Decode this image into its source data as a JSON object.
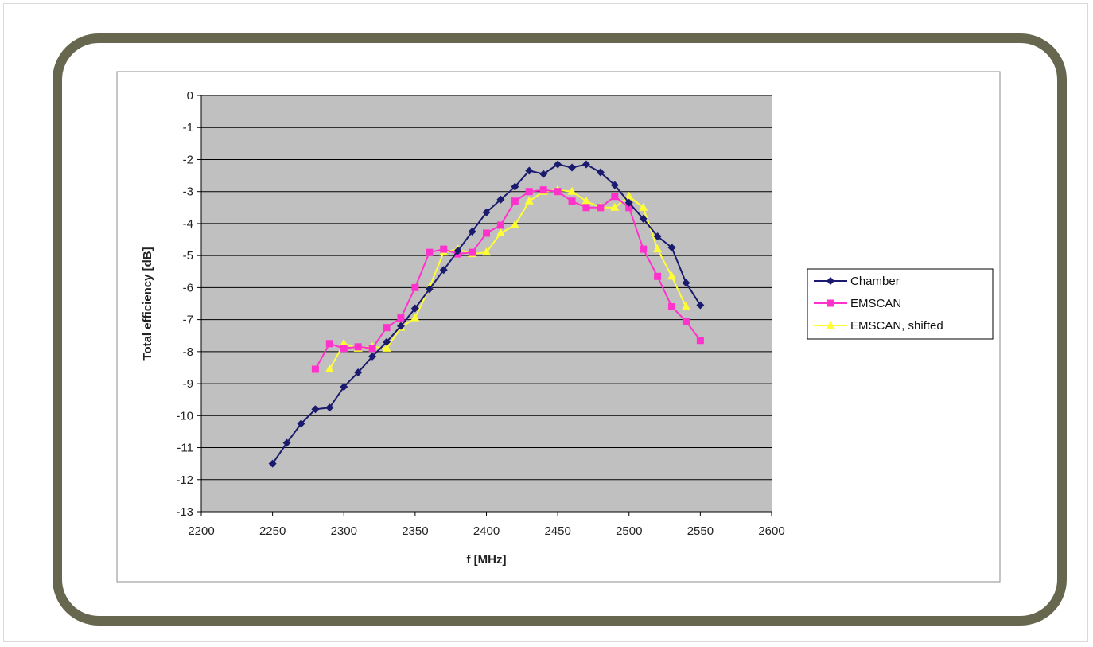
{
  "chart_data": {
    "type": "line",
    "title": "",
    "xlabel": "f [MHz]",
    "ylabel": "Total efficiency [dB]",
    "xlim": [
      2200,
      2600
    ],
    "ylim": [
      -13,
      0
    ],
    "xticks": [
      "2200",
      "2250",
      "2300",
      "2350",
      "2400",
      "2450",
      "2500",
      "2550",
      "2600"
    ],
    "yticks": [
      "0",
      "-1",
      "-2",
      "-3",
      "-4",
      "-5",
      "-6",
      "-7",
      "-8",
      "-9",
      "-10",
      "-11",
      "-12",
      "-13"
    ],
    "grid": true,
    "legend_position": "right",
    "plot_background": "#c0c0c0",
    "series": [
      {
        "name": "Chamber",
        "color": "#1a1a6e",
        "marker": "diamond",
        "points": [
          [
            2250,
            -11.5
          ],
          [
            2260,
            -10.85
          ],
          [
            2270,
            -10.25
          ],
          [
            2280,
            -9.8
          ],
          [
            2290,
            -9.75
          ],
          [
            2300,
            -9.1
          ],
          [
            2310,
            -8.65
          ],
          [
            2320,
            -8.15
          ],
          [
            2330,
            -7.7
          ],
          [
            2340,
            -7.2
          ],
          [
            2350,
            -6.65
          ],
          [
            2360,
            -6.05
          ],
          [
            2370,
            -5.45
          ],
          [
            2380,
            -4.85
          ],
          [
            2390,
            -4.25
          ],
          [
            2400,
            -3.65
          ],
          [
            2410,
            -3.25
          ],
          [
            2420,
            -2.85
          ],
          [
            2430,
            -2.35
          ],
          [
            2440,
            -2.45
          ],
          [
            2450,
            -2.15
          ],
          [
            2460,
            -2.25
          ],
          [
            2470,
            -2.15
          ],
          [
            2480,
            -2.4
          ],
          [
            2490,
            -2.8
          ],
          [
            2500,
            -3.35
          ],
          [
            2510,
            -3.85
          ],
          [
            2520,
            -4.4
          ],
          [
            2530,
            -4.75
          ],
          [
            2540,
            -5.85
          ],
          [
            2550,
            -6.55
          ]
        ]
      },
      {
        "name": "EMSCAN",
        "color": "#ff33cc",
        "marker": "square",
        "points": [
          [
            2280,
            -8.55
          ],
          [
            2290,
            -7.75
          ],
          [
            2300,
            -7.9
          ],
          [
            2310,
            -7.85
          ],
          [
            2320,
            -7.9
          ],
          [
            2330,
            -7.25
          ],
          [
            2340,
            -6.95
          ],
          [
            2350,
            -6.0
          ],
          [
            2360,
            -4.9
          ],
          [
            2370,
            -4.8
          ],
          [
            2380,
            -4.95
          ],
          [
            2390,
            -4.9
          ],
          [
            2400,
            -4.3
          ],
          [
            2410,
            -4.05
          ],
          [
            2420,
            -3.3
          ],
          [
            2430,
            -3.0
          ],
          [
            2440,
            -2.95
          ],
          [
            2450,
            -3.0
          ],
          [
            2460,
            -3.3
          ],
          [
            2470,
            -3.5
          ],
          [
            2480,
            -3.5
          ],
          [
            2490,
            -3.15
          ],
          [
            2500,
            -3.5
          ],
          [
            2510,
            -4.8
          ],
          [
            2520,
            -5.65
          ],
          [
            2530,
            -6.6
          ],
          [
            2540,
            -7.05
          ],
          [
            2550,
            -7.65
          ]
        ]
      },
      {
        "name": "EMSCAN, shifted",
        "color": "#ffff33",
        "marker": "triangle",
        "points": [
          [
            2290,
            -8.55
          ],
          [
            2300,
            -7.75
          ],
          [
            2310,
            -7.9
          ],
          [
            2320,
            -7.85
          ],
          [
            2330,
            -7.9
          ],
          [
            2340,
            -7.25
          ],
          [
            2350,
            -6.95
          ],
          [
            2360,
            -6.0
          ],
          [
            2370,
            -4.9
          ],
          [
            2380,
            -4.8
          ],
          [
            2390,
            -4.95
          ],
          [
            2400,
            -4.9
          ],
          [
            2410,
            -4.3
          ],
          [
            2420,
            -4.05
          ],
          [
            2430,
            -3.3
          ],
          [
            2440,
            -3.0
          ],
          [
            2450,
            -2.95
          ],
          [
            2460,
            -3.0
          ],
          [
            2470,
            -3.3
          ],
          [
            2480,
            -3.5
          ],
          [
            2490,
            -3.5
          ],
          [
            2500,
            -3.15
          ],
          [
            2510,
            -3.5
          ],
          [
            2520,
            -4.8
          ],
          [
            2530,
            -5.65
          ],
          [
            2540,
            -6.6
          ]
        ]
      }
    ]
  }
}
